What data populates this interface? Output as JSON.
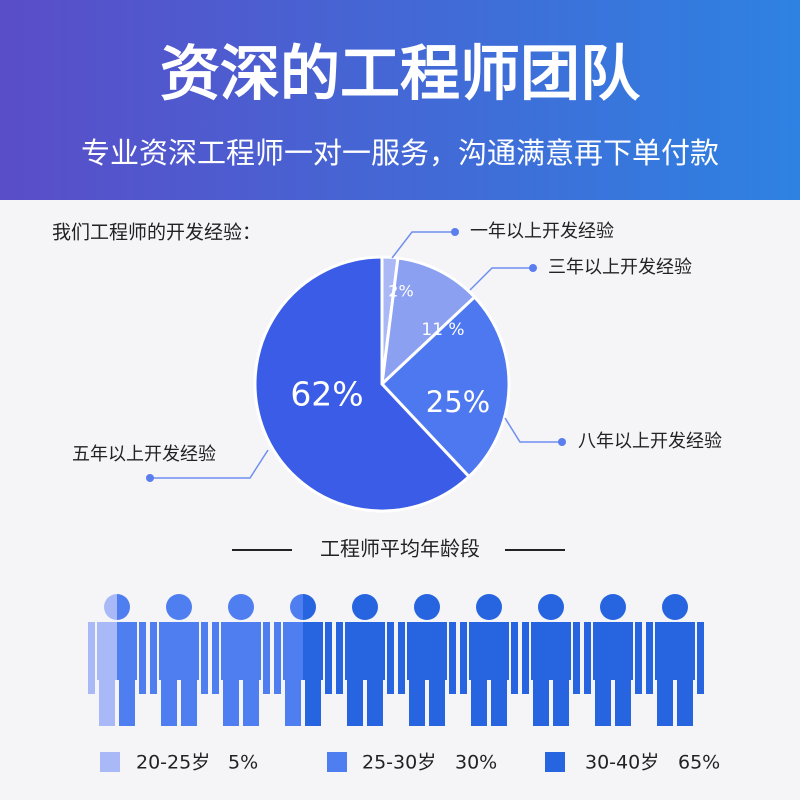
{
  "header": {
    "title": "资深的工程师团队",
    "subtitle": "专业资深工程师一对一服务，沟通满意再下单付款"
  },
  "chart_data": [
    {
      "type": "pie",
      "title": "我们工程师的开发经验：",
      "categories": [
        "一年以上开发经验",
        "三年以上开发经验",
        "八年以上开发经验",
        "五年以上开发经验"
      ],
      "values": [
        2,
        11,
        25,
        62
      ],
      "value_labels": [
        "2%",
        "11 %",
        "25%",
        "62%"
      ],
      "colors": [
        "#aab9f6",
        "#8ba0f1",
        "#4e78ef",
        "#3b5ce6"
      ]
    },
    {
      "type": "pictogram",
      "title": "工程师平均年龄段",
      "categories": [
        "20-25岁",
        "25-30岁",
        "30-40岁"
      ],
      "values": [
        5,
        30,
        65
      ],
      "value_labels": [
        "5%",
        "30%",
        "65%"
      ],
      "colors": [
        "#a9b9f8",
        "#4f7ef0",
        "#2664e0"
      ]
    }
  ]
}
